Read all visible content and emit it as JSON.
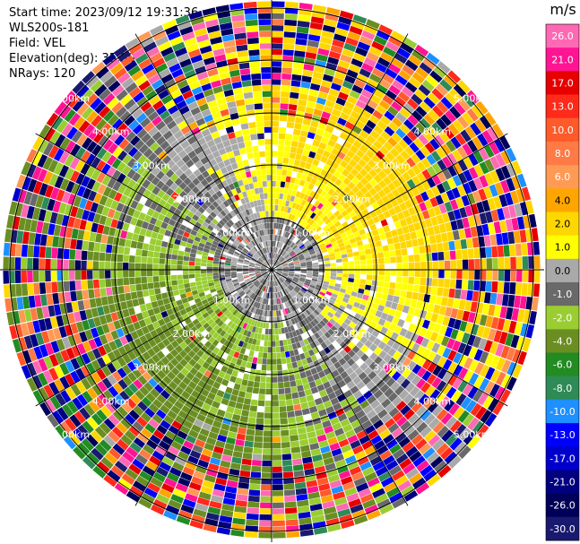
{
  "header": {
    "start_time": "Start time: 2023/09/12 19:31:36",
    "instrument": "WLS200s-181",
    "field": "Field: VEL",
    "elevation": "Elevation(deg): 35.30",
    "nrays": "NRays: 120"
  },
  "chart_data": {
    "type": "heatmap",
    "projection": "polar (PPI)",
    "field": "VEL",
    "elevation_deg": 35.3,
    "nrays": 120,
    "unit": "m/s",
    "range_rings": [
      "1.00km",
      "2.00km",
      "3.00km",
      "4.00km",
      "5.00km",
      "6.00km"
    ],
    "colorbar_ticks": [
      "26.0",
      "21.0",
      "17.0",
      "13.0",
      "10.0",
      "8.0",
      "6.0",
      "4.0",
      "2.0",
      "1.0",
      "0.0",
      "-1.0",
      "-2.0",
      "-4.0",
      "-6.0",
      "-8.0",
      "-10.0",
      "-13.0",
      "-17.0",
      "-21.0",
      "-26.0",
      "-30.0"
    ],
    "colorbar_bins": [
      {
        "from": 26.0,
        "to": 30.0,
        "color": "#ff69b4"
      },
      {
        "from": 21.0,
        "to": 26.0,
        "color": "#ff1493"
      },
      {
        "from": 17.0,
        "to": 21.0,
        "color": "#e60000"
      },
      {
        "from": 13.0,
        "to": 17.0,
        "color": "#ff2a1a"
      },
      {
        "from": 10.0,
        "to": 13.0,
        "color": "#ff5a2a"
      },
      {
        "from": 8.0,
        "to": 10.0,
        "color": "#ff7a45"
      },
      {
        "from": 6.0,
        "to": 8.0,
        "color": "#ff9a55"
      },
      {
        "from": 4.0,
        "to": 6.0,
        "color": "#ffa500"
      },
      {
        "from": 2.0,
        "to": 4.0,
        "color": "#ffd700"
      },
      {
        "from": 1.0,
        "to": 2.0,
        "color": "#ffff00"
      },
      {
        "from": 0.0,
        "to": 1.0,
        "color": "#a9a9a9"
      },
      {
        "from": -1.0,
        "to": 0.0,
        "color": "#696969"
      },
      {
        "from": -2.0,
        "to": -1.0,
        "color": "#9acd32"
      },
      {
        "from": -4.0,
        "to": -2.0,
        "color": "#6b8e23"
      },
      {
        "from": -6.0,
        "to": -4.0,
        "color": "#228b22"
      },
      {
        "from": -8.0,
        "to": -6.0,
        "color": "#2e8b57"
      },
      {
        "from": -10.0,
        "to": -8.0,
        "color": "#1e90ff"
      },
      {
        "from": -13.0,
        "to": -10.0,
        "color": "#0000ff"
      },
      {
        "from": -17.0,
        "to": -13.0,
        "color": "#0000cd"
      },
      {
        "from": -21.0,
        "to": -17.0,
        "color": "#000080"
      },
      {
        "from": -26.0,
        "to": -21.0,
        "color": "#00005a"
      },
      {
        "from": -30.0,
        "to": -26.0,
        "color": "#191970"
      }
    ],
    "pattern": {
      "inner_region": "grey and yellow-green near radar, yellow (1.0 to 4.0 m/s) toward north-east, green (-1.0 to -6.0 m/s) toward south-west",
      "outer_region": "noisy multicolour gates beyond about 4 km"
    }
  }
}
